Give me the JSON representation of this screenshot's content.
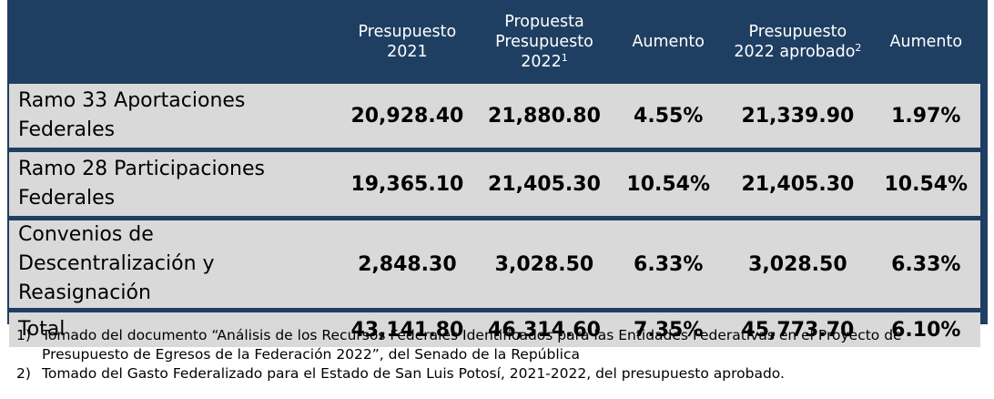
{
  "header": {
    "col1": "Presupuesto 2021",
    "col2": "Propuesta Presupuesto 2022",
    "col2_sup": "1",
    "col3": "Aumento",
    "col4": "Presupuesto 2022 aprobado",
    "col4_sup": "2",
    "col5": "Aumento"
  },
  "rows": [
    {
      "label": "Ramo 33 Aportaciones Federales",
      "p2021": "20,928.40",
      "prop2022": "21,880.80",
      "aumento1": "4.55%",
      "aprob2022": "21,339.90",
      "aumento2": "1.97%"
    },
    {
      "label": "Ramo 28 Participaciones Federales",
      "p2021": "19,365.10",
      "prop2022": "21,405.30",
      "aumento1": "10.54%",
      "aprob2022": "21,405.30",
      "aumento2": "10.54%"
    },
    {
      "label": "Convenios de Descentralización y Reasignación",
      "p2021": "2,848.30",
      "prop2022": "3,028.50",
      "aumento1": "6.33%",
      "aprob2022": "3,028.50",
      "aumento2": "6.33%"
    },
    {
      "label": "Total",
      "p2021": "43,141.80",
      "prop2022": "46,314.60",
      "aumento1": "7.35%",
      "aprob2022": "45,773.70",
      "aumento2": "6.10%"
    }
  ],
  "notes": [
    {
      "num": "1)",
      "text": "Tomado del documento “Análisis de los Recursos Federales Identificados para las Entidades Federativas en el Proyecto de Presupuesto de Egresos de la Federación 2022”, del Senado de la República"
    },
    {
      "num": "2)",
      "text": "Tomado del Gasto Federalizado para el Estado de San Luis Potosí, 2021-2022, del presupuesto aprobado."
    }
  ]
}
